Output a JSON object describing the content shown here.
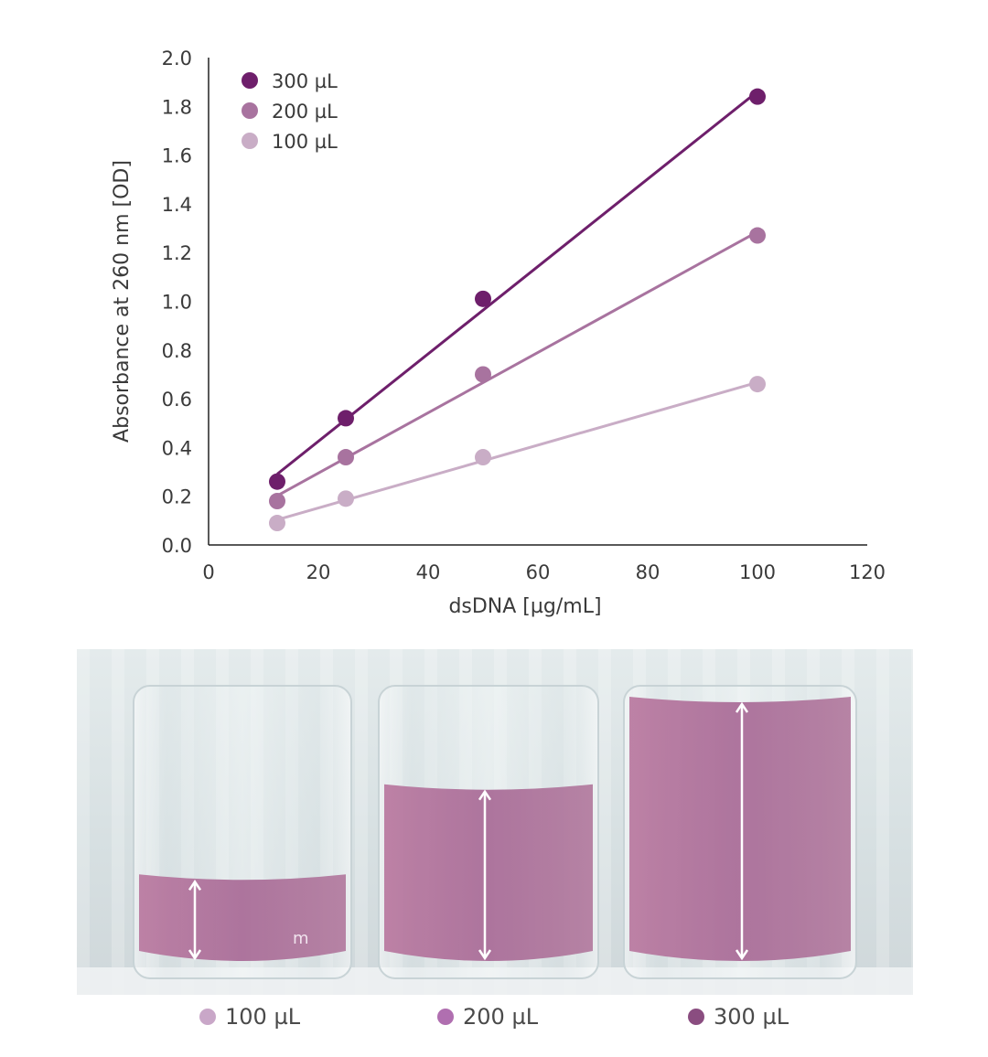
{
  "chart_data": {
    "type": "scatter",
    "xlabel": "dsDNA [µg/mL]",
    "ylabel": "Absorbance at 260 nm [OD]",
    "xlim": [
      0,
      120
    ],
    "ylim": [
      0,
      2.0
    ],
    "xticks": [
      "0",
      "20",
      "40",
      "60",
      "80",
      "100",
      "120"
    ],
    "yticks": [
      "0.0",
      "0.2",
      "0.4",
      "0.6",
      "0.8",
      "1.0",
      "1.2",
      "1.4",
      "1.6",
      "1.8",
      "2.0"
    ],
    "grid": false,
    "legend_position": "top-left",
    "trendlines": true,
    "series": [
      {
        "name": "300 µL",
        "color": "#6e1f6b",
        "x": [
          12.5,
          25,
          50,
          100
        ],
        "y": [
          0.26,
          0.52,
          1.01,
          1.84
        ]
      },
      {
        "name": "200 µL",
        "color": "#a8739f",
        "x": [
          12.5,
          25,
          50,
          100
        ],
        "y": [
          0.18,
          0.36,
          0.7,
          1.27
        ]
      },
      {
        "name": "100 µL",
        "color": "#c9adc6",
        "x": [
          12.5,
          25,
          50,
          100
        ],
        "y": [
          0.09,
          0.19,
          0.36,
          0.66
        ]
      }
    ]
  },
  "photo": {
    "wells": [
      {
        "label": "100 µL",
        "dot_color": "#c9a7c8",
        "fill_fraction": 0.33
      },
      {
        "label": "200 µL",
        "dot_color": "#b06fb0",
        "fill_fraction": 0.67
      },
      {
        "label": "300 µL",
        "dot_color": "#8a4d80",
        "fill_fraction": 1.0
      }
    ],
    "liquid_color": "#a86a96",
    "overlay_text": "m"
  }
}
